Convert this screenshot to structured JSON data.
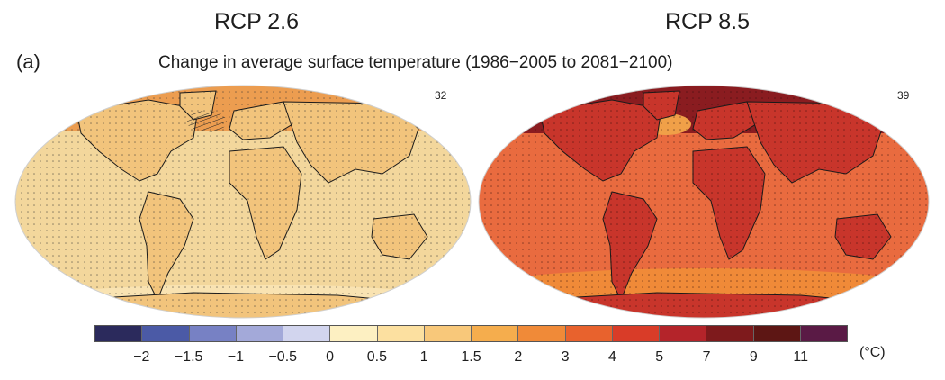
{
  "figure": {
    "panel_label": "(a)",
    "subtitle": "Change in average surface temperature (1986−2005 to 2081−2100)"
  },
  "maps": [
    {
      "title": "RCP 2.6",
      "model_count": "32",
      "base_color": "#f7cf8a",
      "ocean_color": "#f3d79c",
      "land_color": "#f2c47c",
      "high_lat_color": "#ec9d50"
    },
    {
      "title": "RCP 8.5",
      "model_count": "39",
      "base_color": "#e1553a",
      "ocean_color": "#e96b3f",
      "land_color": "#c8352b",
      "high_lat_color": "#8a1c20"
    }
  ],
  "colorbar": {
    "unit": "(°C)",
    "ticks": [
      "−2",
      "−1.5",
      "−1",
      "−0.5",
      "0",
      "0.5",
      "1",
      "1.5",
      "2",
      "3",
      "4",
      "5",
      "7",
      "9",
      "11"
    ],
    "colors": [
      "#2b2a5c",
      "#4b5aa6",
      "#7781c4",
      "#a3a9d9",
      "#d2d5ee",
      "#fdf0c2",
      "#fce0a0",
      "#f8c87a",
      "#f5ad4d",
      "#f08a38",
      "#e8622d",
      "#d93c28",
      "#b4242a",
      "#7e1a1c",
      "#5d1614",
      "#5a1a45"
    ]
  }
}
